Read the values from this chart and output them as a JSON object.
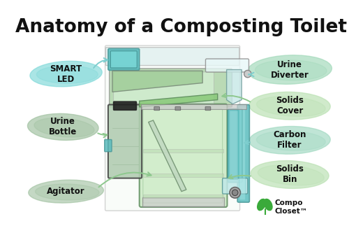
{
  "title": "Anatomy of a Composting Toilet",
  "title_fontsize": 19,
  "title_fontweight": "bold",
  "bg_color": "#ffffff",
  "labels": {
    "smart_led": "SMART\nLED",
    "urine_bottle": "Urine\nBottle",
    "agitator": "Agitator",
    "urine_diverter": "Urine\nDiverter",
    "solids_cover": "Solids\nCover",
    "carbon_filter": "Carbon\nFilter",
    "solids_bin": "Solids\nBin"
  },
  "brush_colors": {
    "smart_led": "#7dd8d8",
    "urine_bottle": "#9dbf9d",
    "agitator": "#9dbf9d",
    "urine_diverter": "#9fd8b8",
    "solids_cover": "#b8e0b0",
    "carbon_filter": "#9fd8c0",
    "solids_bin": "#b8e0b0"
  },
  "arrow_teal": "#7ecece",
  "arrow_green": "#8ec88e",
  "toilet_green_dark": "#7ab87a",
  "toilet_green_mid": "#a0cc98",
  "toilet_green_light": "#c8e8c0",
  "toilet_teal": "#5bbcbe",
  "toilet_teal_light": "#a0d8d8",
  "outline_color": "#666666",
  "logo_green": "#3aaa3a",
  "logo_text": "Compo\nCloset™"
}
